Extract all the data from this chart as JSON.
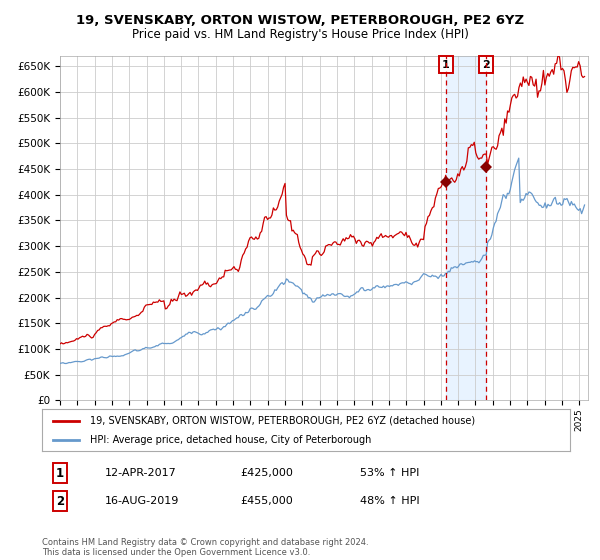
{
  "title1": "19, SVENSKABY, ORTON WISTOW, PETERBOROUGH, PE2 6YZ",
  "title2": "Price paid vs. HM Land Registry's House Price Index (HPI)",
  "legend1": "19, SVENSKABY, ORTON WISTOW, PETERBOROUGH, PE2 6YZ (detached house)",
  "legend2": "HPI: Average price, detached house, City of Peterborough",
  "annotation1_label": "1",
  "annotation1_date": "12-APR-2017",
  "annotation1_price": "£425,000",
  "annotation1_hpi": "53% ↑ HPI",
  "annotation1_year": 2017.28,
  "annotation1_value": 425000,
  "annotation2_label": "2",
  "annotation2_date": "16-AUG-2019",
  "annotation2_price": "£455,000",
  "annotation2_hpi": "48% ↑ HPI",
  "annotation2_year": 2019.62,
  "annotation2_value": 455000,
  "ylim_min": 0,
  "ylim_max": 670000,
  "ytick_step": 50000,
  "xmin": 1995.0,
  "xmax": 2025.5,
  "background_color": "#ffffff",
  "grid_color": "#cccccc",
  "red_line_color": "#cc0000",
  "blue_line_color": "#6699cc",
  "shade_color": "#ddeeff",
  "vline_color": "#cc0000",
  "footnote": "Contains HM Land Registry data © Crown copyright and database right 2024.\nThis data is licensed under the Open Government Licence v3.0."
}
